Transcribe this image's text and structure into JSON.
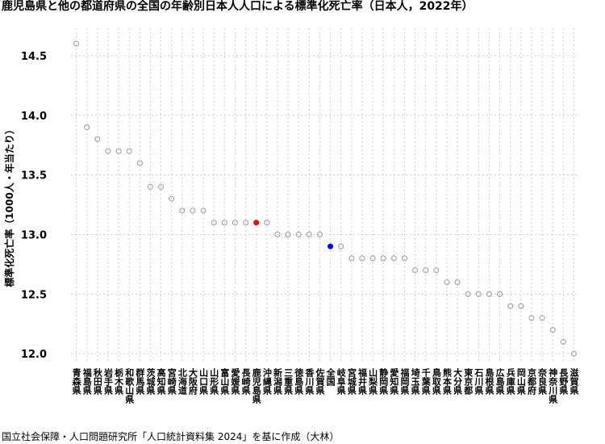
{
  "chart_data": {
    "type": "dot",
    "title": "鹿児島県と他の都道府県の全国の年齢別日本人人口による標準化死亡率（日本人，2022年）",
    "y_label": "標準化死亡率（1000人・年当たり）",
    "source": "国立社会保障・人口問題研究所「人口統計資料集 2024」を基に作成（大林）",
    "categories": [
      "青森県",
      "福島県",
      "秋田県",
      "岩手県",
      "栃木県",
      "和歌山県",
      "群馬県",
      "茨城県",
      "高知県",
      "宮崎県",
      "北海道",
      "大阪府",
      "山口県",
      "山形県",
      "富山県",
      "愛媛県",
      "長崎県",
      "鹿児島県",
      "沖縄県",
      "新潟県",
      "三重県",
      "徳島県",
      "香川県",
      "佐賀県",
      "全国",
      "岐阜県",
      "宮城県",
      "福井県",
      "山梨県",
      "静岡県",
      "愛知県",
      "福岡県",
      "埼玉県",
      "千葉県",
      "鳥取県",
      "熊本県",
      "大分県",
      "東京都",
      "石川県",
      "島根県",
      "広島県",
      "兵庫県",
      "岡山県",
      "京都府",
      "奈良県",
      "神奈川県",
      "長野県",
      "滋賀県"
    ],
    "values": [
      14.6,
      13.9,
      13.8,
      13.7,
      13.7,
      13.7,
      13.6,
      13.4,
      13.4,
      13.3,
      13.2,
      13.2,
      13.2,
      13.1,
      13.1,
      13.1,
      13.1,
      13.1,
      13.1,
      13.0,
      13.0,
      13.0,
      13.0,
      13.0,
      12.9,
      12.9,
      12.8,
      12.8,
      12.8,
      12.8,
      12.8,
      12.8,
      12.7,
      12.7,
      12.7,
      12.6,
      12.6,
      12.5,
      12.5,
      12.5,
      12.5,
      12.4,
      12.4,
      12.3,
      12.3,
      12.2,
      12.1,
      12.0
    ],
    "color": "#999999",
    "highlight": {
      "鹿児島県": "#ff0000",
      "全国": "#0000ff"
    },
    "ylim": [
      11.92,
      14.73
    ],
    "yticks": [
      {
        "value": 12,
        "label": "12.0"
      },
      12.5,
      {
        "value": 13,
        "label": "13.0"
      },
      13.5,
      {
        "value": 14,
        "label": "14.0"
      },
      14.5
    ],
    "grid": true
  }
}
